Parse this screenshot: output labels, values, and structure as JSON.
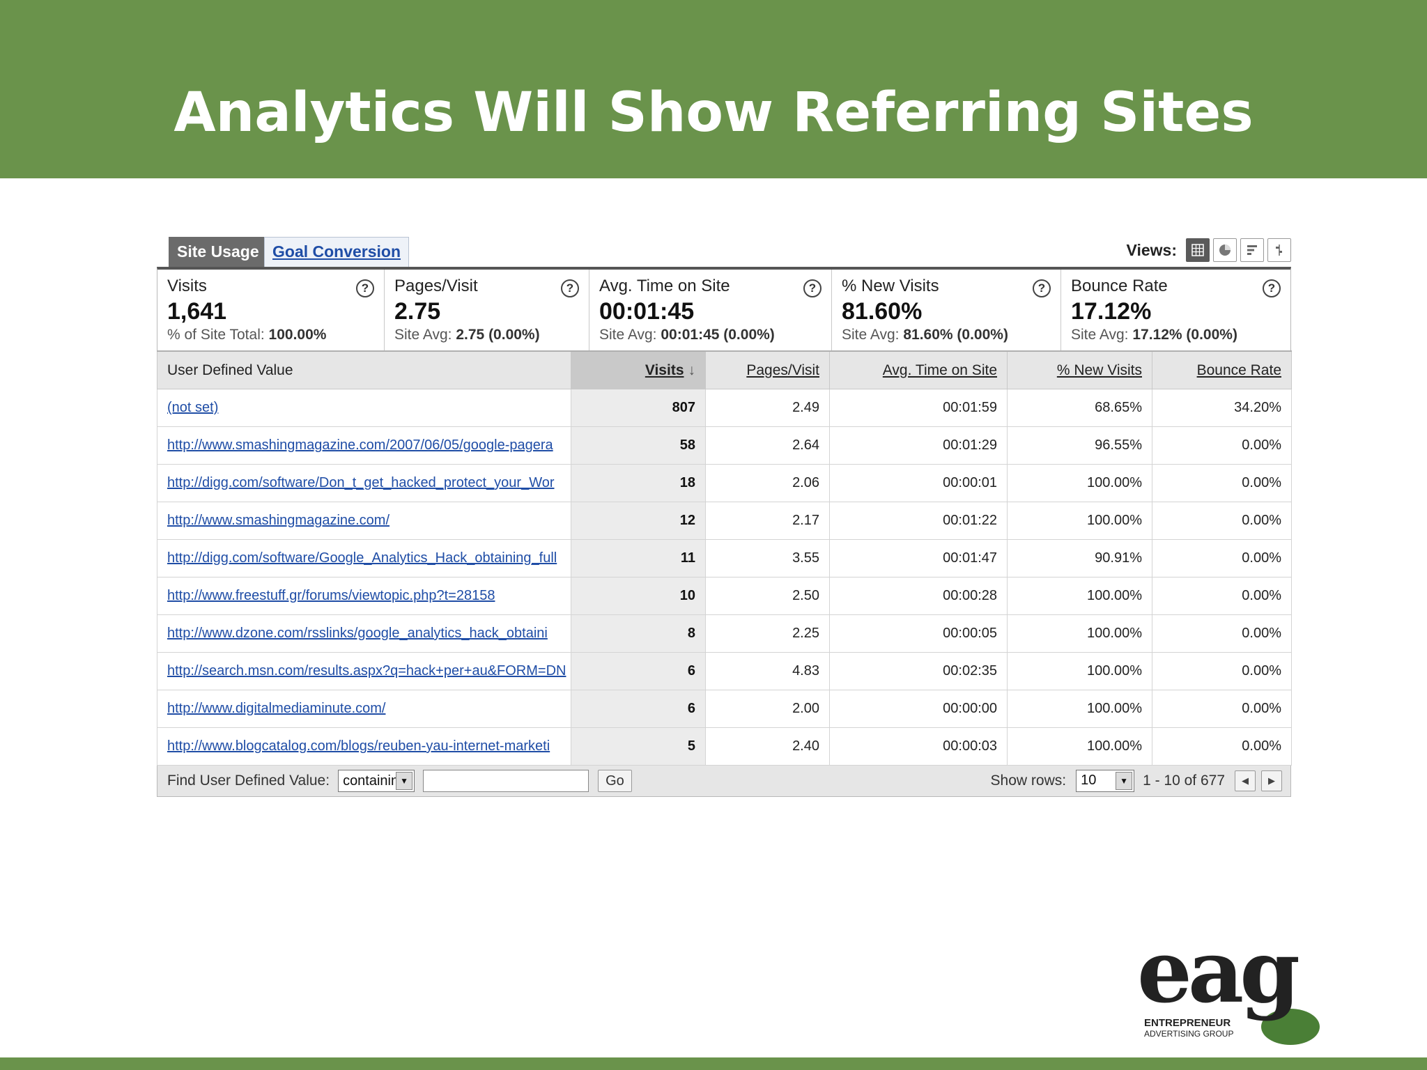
{
  "slide": {
    "title": "Analytics Will Show Referring Sites"
  },
  "tabs": {
    "active": "Site Usage",
    "inactive": "Goal Conversion"
  },
  "views": {
    "label": "Views:",
    "icons": [
      "table-view-icon",
      "pie-view-icon",
      "bar-view-icon",
      "comparison-view-icon"
    ]
  },
  "summary": [
    {
      "title": "Visits",
      "value": "1,641",
      "sub_label": "% of Site Total:",
      "sub_value": "100.00%"
    },
    {
      "title": "Pages/Visit",
      "value": "2.75",
      "sub_label": "Site Avg:",
      "sub_value": "2.75 (0.00%)"
    },
    {
      "title": "Avg. Time on Site",
      "value": "00:01:45",
      "sub_label": "Site Avg:",
      "sub_value": "00:01:45 (0.00%)"
    },
    {
      "title": "% New Visits",
      "value": "81.60%",
      "sub_label": "Site Avg:",
      "sub_value": "81.60% (0.00%)"
    },
    {
      "title": "Bounce Rate",
      "value": "17.12%",
      "sub_label": "Site Avg:",
      "sub_value": "17.12% (0.00%)"
    }
  ],
  "help_glyph": "?",
  "table": {
    "columns": [
      "User Defined Value",
      "Visits",
      "Pages/Visit",
      "Avg. Time on Site",
      "% New Visits",
      "Bounce Rate"
    ],
    "sort_arrow": "↓",
    "rows": [
      [
        "(not set)",
        "807",
        "2.49",
        "00:01:59",
        "68.65%",
        "34.20%"
      ],
      [
        "http://www.smashingmagazine.com/2007/06/05/google-pagera",
        "58",
        "2.64",
        "00:01:29",
        "96.55%",
        "0.00%"
      ],
      [
        "http://digg.com/software/Don_t_get_hacked_protect_your_Wor",
        "18",
        "2.06",
        "00:00:01",
        "100.00%",
        "0.00%"
      ],
      [
        "http://www.smashingmagazine.com/",
        "12",
        "2.17",
        "00:01:22",
        "100.00%",
        "0.00%"
      ],
      [
        "http://digg.com/software/Google_Analytics_Hack_obtaining_full",
        "11",
        "3.55",
        "00:01:47",
        "90.91%",
        "0.00%"
      ],
      [
        "http://www.freestuff.gr/forums/viewtopic.php?t=28158",
        "10",
        "2.50",
        "00:00:28",
        "100.00%",
        "0.00%"
      ],
      [
        "http://www.dzone.com/rsslinks/google_analytics_hack_obtaini",
        "8",
        "2.25",
        "00:00:05",
        "100.00%",
        "0.00%"
      ],
      [
        "http://search.msn.com/results.aspx?q=hack+per+au&FORM=DN",
        "6",
        "4.83",
        "00:02:35",
        "100.00%",
        "0.00%"
      ],
      [
        "http://www.digitalmediaminute.com/",
        "6",
        "2.00",
        "00:00:00",
        "100.00%",
        "0.00%"
      ],
      [
        "http://www.blogcatalog.com/blogs/reuben-yau-internet-marketi",
        "5",
        "2.40",
        "00:00:03",
        "100.00%",
        "0.00%"
      ]
    ]
  },
  "toolbar": {
    "find_label": "Find User Defined Value:",
    "filter_select": "containing",
    "filter_input": "",
    "go_label": "Go",
    "show_rows_label": "Show rows:",
    "show_rows_value": "10",
    "range_text": "1 - 10 of 677"
  },
  "logo": {
    "text": "eag",
    "line1": "ENTREPRENEUR",
    "line2": "ADVERTISING GROUP"
  },
  "colors": {
    "header_green": "#6a934b",
    "link_blue": "#1f4da6",
    "logo_green": "#4a7f36"
  }
}
